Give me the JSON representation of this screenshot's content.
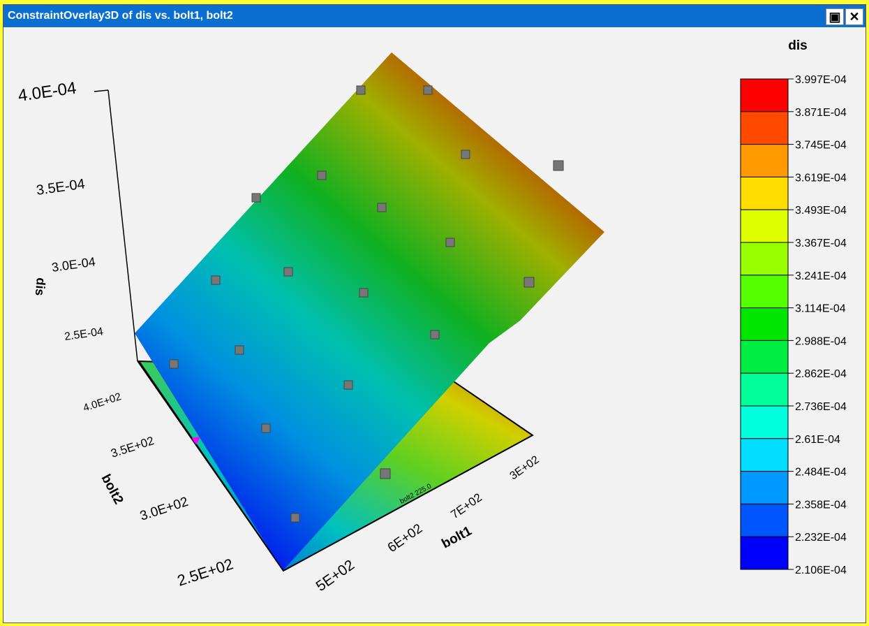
{
  "window": {
    "title": "ConstraintOverlay3D of dis vs. bolt1, bolt2"
  },
  "plot": {
    "z_axis_label": "dis",
    "z_ticks": [
      "4.0E-04",
      "3.5E-04",
      "3.0E-04",
      "2.5E-04"
    ],
    "y_axis_label": "bolt2",
    "y_ticks": [
      "4.0E+02",
      "3.5E+02",
      "3.0E+02",
      "2.5E+02"
    ],
    "x_axis_label": "bolt1",
    "x_ticks": [
      "5E+02",
      "6E+02",
      "7E+02",
      "3E+02"
    ],
    "contour_label": "bolt2 225.0"
  },
  "legend": {
    "title": "dis",
    "labels": [
      "3.997E-04",
      "3.871E-04",
      "3.745E-04",
      "3.619E-04",
      "3.493E-04",
      "3.367E-04",
      "3.241E-04",
      "3.114E-04",
      "2.988E-04",
      "2.862E-04",
      "2.736E-04",
      "2.61E-04",
      "2.484E-04",
      "2.358E-04",
      "2.232E-04",
      "2.106E-04"
    ],
    "colors": [
      "#ff0000",
      "#ff4a00",
      "#ff9900",
      "#ffdd00",
      "#ddff00",
      "#99ff00",
      "#55ff00",
      "#00e600",
      "#00ee44",
      "#00ff99",
      "#00ffdd",
      "#00ddff",
      "#0099ff",
      "#0055ff",
      "#0000ff"
    ]
  }
}
